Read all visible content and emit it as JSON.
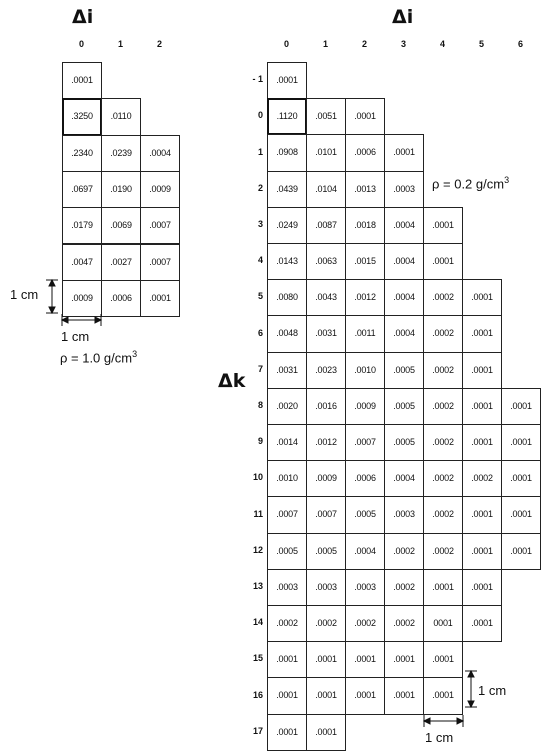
{
  "left_grid": {
    "title": "Δi",
    "col_indices": [
      "0",
      "1",
      "2"
    ],
    "rows": [
      [
        ".0001"
      ],
      [
        ".3250",
        ".0110"
      ],
      [
        ".2340",
        ".0239",
        ".0004"
      ],
      [
        ".0697",
        ".0190",
        ".0009"
      ],
      [
        ".0179",
        ".0069",
        ".0007"
      ],
      [
        ".0047",
        ".0027",
        ".0007"
      ],
      [
        ".0009",
        ".0006",
        ".0001"
      ]
    ],
    "highlight": {
      "row": 1,
      "col": 0
    },
    "dim_vertical_label": "1 cm",
    "dim_horizontal_label": "1 cm",
    "density_label": "ρ = 1.0 g/cm",
    "density_exp": "3"
  },
  "right_grid": {
    "title": "Δi",
    "row_axis_title": "Δk",
    "col_indices": [
      "0",
      "1",
      "2",
      "3",
      "4",
      "5",
      "6"
    ],
    "row_indices": [
      "- 1",
      "0",
      "1",
      "2",
      "3",
      "4",
      "5",
      "6",
      "7",
      "8",
      "9",
      "10",
      "11",
      "12",
      "13",
      "14",
      "15",
      "16",
      "17"
    ],
    "rows": [
      [
        ".0001"
      ],
      [
        ".1120",
        ".0051",
        ".0001"
      ],
      [
        ".0908",
        ".0101",
        ".0006",
        ".0001"
      ],
      [
        ".0439",
        ".0104",
        ".0013",
        ".0003"
      ],
      [
        ".0249",
        ".0087",
        ".0018",
        ".0004",
        ".0001"
      ],
      [
        ".0143",
        ".0063",
        ".0015",
        ".0004",
        ".0001"
      ],
      [
        ".0080",
        ".0043",
        ".0012",
        ".0004",
        ".0002",
        ".0001"
      ],
      [
        ".0048",
        ".0031",
        ".0011",
        ".0004",
        ".0002",
        ".0001"
      ],
      [
        ".0031",
        ".0023",
        ".0010",
        ".0005",
        ".0002",
        ".0001"
      ],
      [
        ".0020",
        ".0016",
        ".0009",
        ".0005",
        ".0002",
        ".0001",
        ".0001"
      ],
      [
        ".0014",
        ".0012",
        ".0007",
        ".0005",
        ".0002",
        ".0001",
        ".0001"
      ],
      [
        ".0010",
        ".0009",
        ".0006",
        ".0004",
        ".0002",
        ".0002",
        ".0001"
      ],
      [
        ".0007",
        ".0007",
        ".0005",
        ".0003",
        ".0002",
        ".0001",
        ".0001"
      ],
      [
        ".0005",
        ".0005",
        ".0004",
        ".0002",
        ".0002",
        ".0001",
        ".0001"
      ],
      [
        ".0003",
        ".0003",
        ".0003",
        ".0002",
        ".0001",
        ".0001"
      ],
      [
        ".0002",
        ".0002",
        ".0002",
        ".0002",
        "0001",
        ".0001"
      ],
      [
        ".0001",
        ".0001",
        ".0001",
        ".0001",
        ".0001"
      ],
      [
        ".0001",
        ".0001",
        ".0001",
        ".0001",
        ".0001"
      ],
      [
        ".0001",
        ".0001"
      ]
    ],
    "highlight": {
      "row": 1,
      "col": 0
    },
    "density_label": "ρ = 0.2 g/cm",
    "density_exp": "3",
    "dim_vertical_label": "1 cm",
    "dim_horizontal_label": "1 cm"
  }
}
